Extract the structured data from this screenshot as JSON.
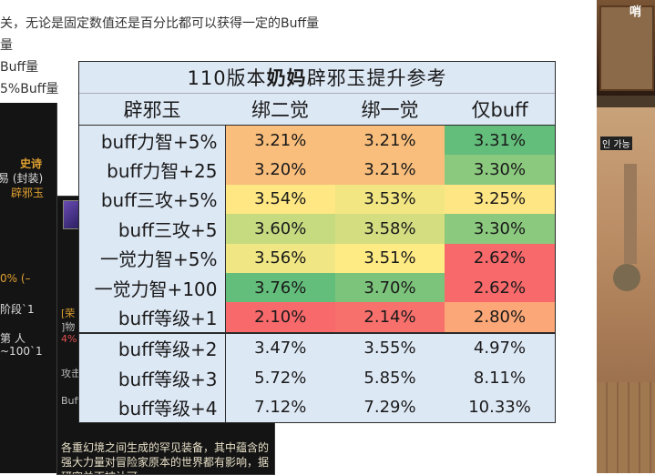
{
  "article": {
    "lines": [
      "关，无论是固定数值还是百分比都可以获得一定的Buff量",
      "量",
      "Buff量",
      "5%Buff量"
    ]
  },
  "tooltip1": {
    "rarity": "史诗",
    "bind": "易 (封装)",
    "type": "辟邪玉",
    "percent": "0% (–",
    "stage": "阶段`1",
    "line": "第 人",
    "range": "~100`1"
  },
  "tooltip2": {
    "tag1": "[荣",
    "tag2": "]物",
    "pct": "4%",
    "atk": "攻击",
    "buff": "Buff",
    "desc": "各重幻境之间生成的罕见装备，其中蕴含的强大力量对冒险家原本的世界都有影响，据研究并不被认可"
  },
  "game": {
    "title": "哨",
    "label": "인 가능"
  },
  "table": {
    "title_prefix": "110版本",
    "title_bold": "奶妈",
    "title_suffix": "辟邪玉提升参考",
    "headers": [
      "辟邪玉",
      "绑二觉",
      "绑一觉",
      "仅buff"
    ],
    "rows": [
      {
        "label": "buff力智+5%",
        "cells": [
          "3.21%",
          "3.21%",
          "3.31%"
        ],
        "colors": [
          "#f9be7c",
          "#f9be7c",
          "#63be7b"
        ]
      },
      {
        "label": "buff力智+25",
        "cells": [
          "3.20%",
          "3.21%",
          "3.30%"
        ],
        "colors": [
          "#f9bd7c",
          "#f9be7c",
          "#8bc97e"
        ]
      },
      {
        "label": "buff三攻+5%",
        "cells": [
          "3.54%",
          "3.53%",
          "3.25%"
        ],
        "colors": [
          "#ffe884",
          "#f2e683",
          "#ffe684"
        ]
      },
      {
        "label": "buff三攻+5",
        "cells": [
          "3.60%",
          "3.58%",
          "3.30%"
        ],
        "colors": [
          "#c6da80",
          "#d4de81",
          "#8bc97e"
        ]
      },
      {
        "label": "一觉力智+5%",
        "cells": [
          "3.56%",
          "3.51%",
          "2.62%"
        ],
        "colors": [
          "#f0e683",
          "#ffeb84",
          "#f8696b"
        ]
      },
      {
        "label": "一觉力智+100",
        "cells": [
          "3.76%",
          "3.70%",
          "2.62%"
        ],
        "colors": [
          "#63be7b",
          "#7cc47c",
          "#f8696b"
        ]
      },
      {
        "label": "buff等级+1",
        "cells": [
          "2.10%",
          "2.14%",
          "2.80%"
        ],
        "colors": [
          "#f8696b",
          "#f8706c",
          "#fba777"
        ]
      },
      {
        "label": "buff等级+2",
        "cells": [
          "3.47%",
          "3.55%",
          "4.97%"
        ],
        "colors": []
      },
      {
        "label": "buff等级+3",
        "cells": [
          "5.72%",
          "5.85%",
          "8.11%"
        ],
        "colors": []
      },
      {
        "label": "buff等级+4",
        "cells": [
          "7.12%",
          "7.29%",
          "10.33%"
        ],
        "colors": []
      }
    ]
  }
}
